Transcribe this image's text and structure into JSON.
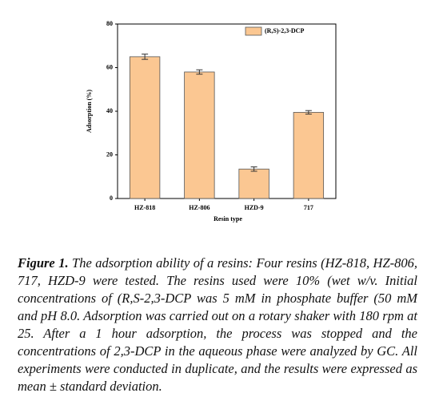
{
  "chart_data": {
    "type": "bar",
    "categories": [
      "HZ-818",
      "HZ-806",
      "HZD-9",
      "717"
    ],
    "series": [
      {
        "name": "(R,S)-2,3-DCP",
        "color": "#fbc792",
        "values": [
          65,
          58,
          13.5,
          39.5
        ],
        "errors": [
          1.2,
          1,
          1,
          0.8
        ]
      }
    ],
    "ylim": [
      0,
      80
    ],
    "yticks": [
      0,
      20,
      40,
      60,
      80
    ],
    "ylabel": "Adsorption (%)",
    "xlabel": "Resin type",
    "legend": "upper-right"
  },
  "caption": {
    "label": "Figure 1.",
    "text": "The adsorption ability of a resins: Four resins (HZ-818, HZ-806, 717, HZD-9 were tested. The resins used were 10% (wet w/v. Initial concentrations of (R,S-2,3-DCP was 5 mM in phosphate buffer (50 mM and pH 8.0. Adsorption was carried out on a rotary shaker with 180 rpm at 25. After a 1 hour adsorption, the process was stopped and the concentrations of 2,3-DCP in the aqueous phase were analyzed by GC. All experiments were conducted in duplicate, and the results were expressed as mean ± standard deviation."
  }
}
